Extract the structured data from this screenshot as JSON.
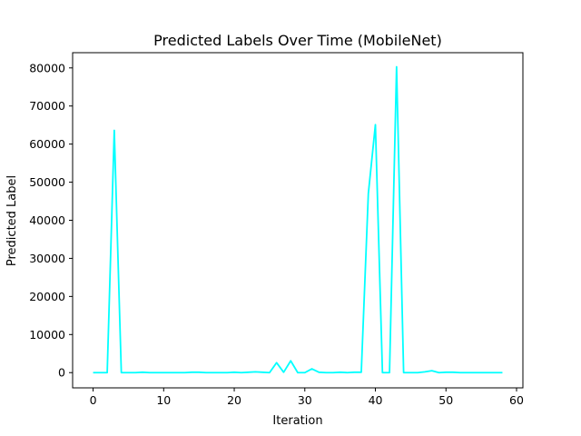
{
  "chart_data": {
    "type": "line",
    "title": "Predicted Labels Over Time (MobileNet)",
    "xlabel": "Iteration",
    "ylabel": "Predicted Label",
    "xlim": [
      -2.9,
      60.9
    ],
    "ylim": [
      -4000,
      84000
    ],
    "xticks": [
      0,
      10,
      20,
      30,
      40,
      50,
      60
    ],
    "yticks": [
      0,
      10000,
      20000,
      30000,
      40000,
      50000,
      60000,
      70000,
      80000
    ],
    "grid": false,
    "series": [
      {
        "color": "#00ffff",
        "x": [
          0,
          1,
          2,
          3,
          4,
          5,
          6,
          7,
          8,
          9,
          10,
          11,
          12,
          13,
          14,
          15,
          16,
          17,
          18,
          19,
          20,
          21,
          22,
          23,
          24,
          25,
          26,
          27,
          28,
          29,
          30,
          31,
          32,
          33,
          34,
          35,
          36,
          37,
          38,
          39,
          40,
          41,
          42,
          43,
          44,
          45,
          46,
          47,
          48,
          49,
          50,
          51,
          52,
          53,
          54,
          55,
          56,
          57,
          58
        ],
        "values": [
          0,
          0,
          0,
          63600,
          0,
          0,
          0,
          100,
          0,
          0,
          0,
          0,
          0,
          0,
          100,
          100,
          0,
          0,
          0,
          0,
          100,
          0,
          100,
          200,
          100,
          0,
          2600,
          100,
          3100,
          0,
          0,
          1000,
          100,
          0,
          0,
          100,
          0,
          100,
          100,
          47000,
          65100,
          0,
          0,
          80300,
          0,
          0,
          0,
          200,
          500,
          0,
          100,
          100,
          0,
          0,
          0,
          0,
          0,
          0,
          0
        ]
      }
    ]
  }
}
